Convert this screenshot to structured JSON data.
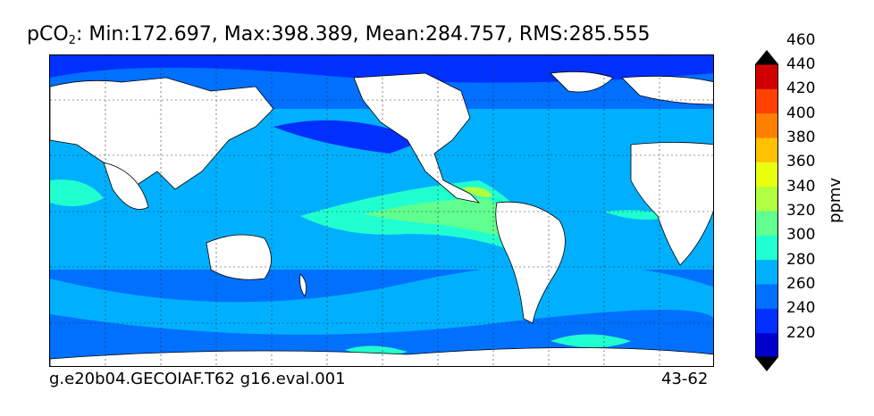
{
  "title": {
    "variable": "pCO",
    "subscript": "2",
    "stats": ": Min:172.697, Max:398.389, Mean:284.757, RMS:285.555"
  },
  "footer": {
    "case_name": "g.e20b04.GECOIAF.T62 g16.eval.001",
    "years": "43-62"
  },
  "colorbar": {
    "unit_label": "ppmv",
    "ticks": [
      "220",
      "240",
      "260",
      "280",
      "300",
      "320",
      "340",
      "360",
      "380",
      "400",
      "420",
      "440",
      "460"
    ],
    "levels": [
      {
        "value": 210,
        "color": "#000080"
      },
      {
        "value": 230,
        "color": "#0000cd"
      },
      {
        "value": 250,
        "color": "#0030ff"
      },
      {
        "value": 270,
        "color": "#0070ff"
      },
      {
        "value": 290,
        "color": "#00b0ff"
      },
      {
        "value": 310,
        "color": "#20ffd0"
      },
      {
        "value": 330,
        "color": "#60ff90"
      },
      {
        "value": 350,
        "color": "#b0ff40"
      },
      {
        "value": 370,
        "color": "#e8ff10"
      },
      {
        "value": 390,
        "color": "#ffc000"
      },
      {
        "value": 410,
        "color": "#ff8000"
      },
      {
        "value": 430,
        "color": "#ff4000"
      },
      {
        "value": 450,
        "color": "#d00000"
      },
      {
        "value": 470,
        "color": "#800000"
      }
    ],
    "extend": "both"
  },
  "map": {
    "projection": "cylindrical",
    "gridlines": "dotted",
    "land_color": "#ffffff",
    "ocean_palette": {
      "high_latitude": "#0070ff",
      "subtropical": "#00b0ff",
      "equatorial": "#20ffd0",
      "upwelling_core": "#b0ff40",
      "peak": "#e8ff10",
      "low": "#0030ff"
    }
  }
}
